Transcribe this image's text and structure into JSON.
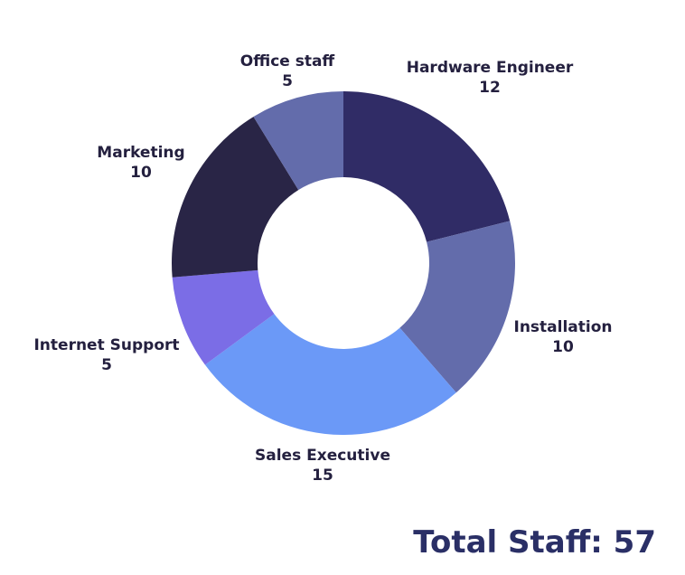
{
  "chart_data": {
    "type": "pie",
    "donut": true,
    "categories": [
      "Hardware Engineer",
      "Installation",
      "Sales Executive",
      "Internet Support",
      "Marketing",
      "Office staff"
    ],
    "values": [
      12,
      10,
      15,
      5,
      10,
      5
    ],
    "colors": [
      "#302c66",
      "#636cab",
      "#6b99f7",
      "#7b6de6",
      "#292546",
      "#636cab"
    ],
    "title": "",
    "legend": "none"
  },
  "total_text": "Total Staff: 57"
}
